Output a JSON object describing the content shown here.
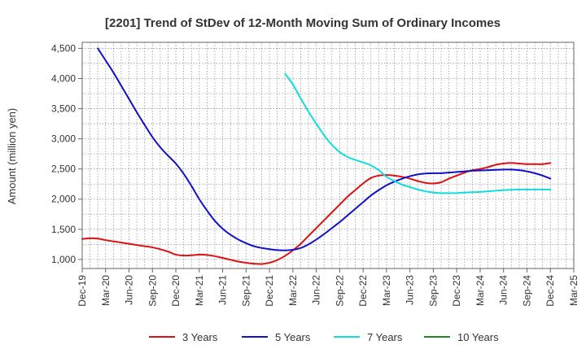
{
  "chart_data": {
    "type": "line",
    "title": "[2201]  Trend of StDev of 12-Month Moving Sum of Ordinary Incomes",
    "ylabel": "Amount (million yen)",
    "xlabel": "",
    "ylim": [
      850,
      4600
    ],
    "yticks": [
      1000,
      1500,
      2000,
      2500,
      3000,
      3500,
      4000,
      4500
    ],
    "ytick_labels": [
      "1,000",
      "1,500",
      "2,000",
      "2,500",
      "3,000",
      "3,500",
      "4,000",
      "4,500"
    ],
    "x_start": "Dec-19",
    "x_ticks": [
      "Dec-19",
      "Mar-20",
      "Jun-20",
      "Sep-20",
      "Dec-20",
      "Mar-21",
      "Jun-21",
      "Sep-21",
      "Dec-21",
      "Mar-22",
      "Jun-22",
      "Sep-22",
      "Dec-22",
      "Mar-23",
      "Jun-23",
      "Sep-23",
      "Dec-23",
      "Mar-24",
      "Jun-24",
      "Sep-24",
      "Dec-24",
      "Mar-25"
    ],
    "grid": true,
    "legend_position": "bottom",
    "series": [
      {
        "name": "3 Years",
        "color": "#dd1111",
        "points": [
          [
            "Dec-19",
            1340
          ],
          [
            "Jan-20",
            1350
          ],
          [
            "Feb-20",
            1345
          ],
          [
            "Mar-20",
            1320
          ],
          [
            "Apr-20",
            1300
          ],
          [
            "May-20",
            1280
          ],
          [
            "Jun-20",
            1260
          ],
          [
            "Jul-20",
            1240
          ],
          [
            "Aug-20",
            1220
          ],
          [
            "Sep-20",
            1200
          ],
          [
            "Oct-20",
            1170
          ],
          [
            "Nov-20",
            1130
          ],
          [
            "Dec-20",
            1080
          ],
          [
            "Jan-21",
            1065
          ],
          [
            "Feb-21",
            1070
          ],
          [
            "Mar-21",
            1080
          ],
          [
            "Apr-21",
            1075
          ],
          [
            "May-21",
            1055
          ],
          [
            "Jun-21",
            1025
          ],
          [
            "Jul-21",
            995
          ],
          [
            "Aug-21",
            965
          ],
          [
            "Sep-21",
            945
          ],
          [
            "Oct-21",
            930
          ],
          [
            "Nov-21",
            925
          ],
          [
            "Dec-21",
            945
          ],
          [
            "Jan-22",
            990
          ],
          [
            "Feb-22",
            1060
          ],
          [
            "Mar-22",
            1150
          ],
          [
            "Apr-22",
            1260
          ],
          [
            "May-22",
            1390
          ],
          [
            "Jun-22",
            1520
          ],
          [
            "Jul-22",
            1650
          ],
          [
            "Aug-22",
            1780
          ],
          [
            "Sep-22",
            1910
          ],
          [
            "Oct-22",
            2040
          ],
          [
            "Nov-22",
            2150
          ],
          [
            "Dec-22",
            2260
          ],
          [
            "Jan-23",
            2350
          ],
          [
            "Feb-23",
            2390
          ],
          [
            "Mar-23",
            2400
          ],
          [
            "Apr-23",
            2390
          ],
          [
            "May-23",
            2370
          ],
          [
            "Jun-23",
            2340
          ],
          [
            "Jul-23",
            2300
          ],
          [
            "Aug-23",
            2270
          ],
          [
            "Sep-23",
            2260
          ],
          [
            "Oct-23",
            2280
          ],
          [
            "Nov-23",
            2340
          ],
          [
            "Dec-23",
            2390
          ],
          [
            "Jan-24",
            2440
          ],
          [
            "Feb-24",
            2480
          ],
          [
            "Mar-24",
            2500
          ],
          [
            "Apr-24",
            2530
          ],
          [
            "May-24",
            2570
          ],
          [
            "Jun-24",
            2590
          ],
          [
            "Jul-24",
            2600
          ],
          [
            "Aug-24",
            2590
          ],
          [
            "Sep-24",
            2580
          ],
          [
            "Oct-24",
            2580
          ],
          [
            "Nov-24",
            2580
          ],
          [
            "Dec-24",
            2600
          ]
        ]
      },
      {
        "name": "5 Years",
        "color": "#1111cc",
        "points": [
          [
            "Feb-20",
            4500
          ],
          [
            "Mar-20",
            4300
          ],
          [
            "Apr-20",
            4100
          ],
          [
            "May-20",
            3880
          ],
          [
            "Jun-20",
            3660
          ],
          [
            "Jul-20",
            3440
          ],
          [
            "Aug-20",
            3230
          ],
          [
            "Sep-20",
            3030
          ],
          [
            "Oct-20",
            2860
          ],
          [
            "Nov-20",
            2720
          ],
          [
            "Dec-20",
            2590
          ],
          [
            "Jan-21",
            2420
          ],
          [
            "Feb-21",
            2220
          ],
          [
            "Mar-21",
            2000
          ],
          [
            "Apr-21",
            1810
          ],
          [
            "May-21",
            1640
          ],
          [
            "Jun-21",
            1510
          ],
          [
            "Jul-21",
            1410
          ],
          [
            "Aug-21",
            1330
          ],
          [
            "Sep-21",
            1270
          ],
          [
            "Oct-21",
            1220
          ],
          [
            "Nov-21",
            1190
          ],
          [
            "Dec-21",
            1170
          ],
          [
            "Jan-22",
            1155
          ],
          [
            "Feb-22",
            1150
          ],
          [
            "Mar-22",
            1160
          ],
          [
            "Apr-22",
            1190
          ],
          [
            "May-22",
            1250
          ],
          [
            "Jun-22",
            1330
          ],
          [
            "Jul-22",
            1420
          ],
          [
            "Aug-22",
            1520
          ],
          [
            "Sep-22",
            1620
          ],
          [
            "Oct-22",
            1730
          ],
          [
            "Nov-22",
            1840
          ],
          [
            "Dec-22",
            1950
          ],
          [
            "Jan-23",
            2060
          ],
          [
            "Feb-23",
            2150
          ],
          [
            "Mar-23",
            2230
          ],
          [
            "Apr-23",
            2290
          ],
          [
            "May-23",
            2340
          ],
          [
            "Jun-23",
            2380
          ],
          [
            "Jul-23",
            2410
          ],
          [
            "Aug-23",
            2425
          ],
          [
            "Sep-23",
            2430
          ],
          [
            "Oct-23",
            2430
          ],
          [
            "Nov-23",
            2440
          ],
          [
            "Dec-23",
            2450
          ],
          [
            "Jan-24",
            2460
          ],
          [
            "Feb-24",
            2470
          ],
          [
            "Mar-24",
            2475
          ],
          [
            "Apr-24",
            2480
          ],
          [
            "May-24",
            2485
          ],
          [
            "Jun-24",
            2490
          ],
          [
            "Jul-24",
            2490
          ],
          [
            "Aug-24",
            2480
          ],
          [
            "Sep-24",
            2460
          ],
          [
            "Oct-24",
            2430
          ],
          [
            "Nov-24",
            2390
          ],
          [
            "Dec-24",
            2340
          ]
        ]
      },
      {
        "name": "7 Years",
        "color": "#11dddd",
        "points": [
          [
            "Feb-22",
            4080
          ],
          [
            "Mar-22",
            3900
          ],
          [
            "Apr-22",
            3670
          ],
          [
            "May-22",
            3450
          ],
          [
            "Jun-22",
            3250
          ],
          [
            "Jul-22",
            3060
          ],
          [
            "Aug-22",
            2900
          ],
          [
            "Sep-22",
            2780
          ],
          [
            "Oct-22",
            2700
          ],
          [
            "Nov-22",
            2650
          ],
          [
            "Dec-22",
            2610
          ],
          [
            "Jan-23",
            2560
          ],
          [
            "Feb-23",
            2480
          ],
          [
            "Mar-23",
            2370
          ],
          [
            "Apr-23",
            2300
          ],
          [
            "May-23",
            2240
          ],
          [
            "Jun-23",
            2200
          ],
          [
            "Jul-23",
            2160
          ],
          [
            "Aug-23",
            2130
          ],
          [
            "Sep-23",
            2110
          ],
          [
            "Oct-23",
            2100
          ],
          [
            "Nov-23",
            2100
          ],
          [
            "Dec-23",
            2100
          ],
          [
            "Jan-24",
            2110
          ],
          [
            "Feb-24",
            2115
          ],
          [
            "Mar-24",
            2120
          ],
          [
            "Apr-24",
            2130
          ],
          [
            "May-24",
            2140
          ],
          [
            "Jun-24",
            2150
          ],
          [
            "Jul-24",
            2155
          ],
          [
            "Aug-24",
            2160
          ],
          [
            "Sep-24",
            2160
          ],
          [
            "Oct-24",
            2160
          ],
          [
            "Nov-24",
            2160
          ],
          [
            "Dec-24",
            2160
          ]
        ]
      },
      {
        "name": "10 Years",
        "color": "#228822",
        "points": []
      }
    ]
  }
}
